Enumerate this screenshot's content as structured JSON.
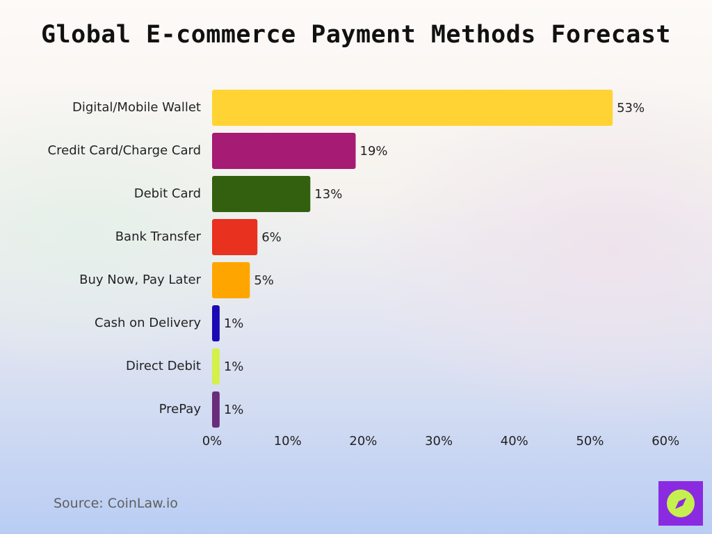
{
  "title": "Global E-commerce Payment Methods Forecast",
  "source": "Source: CoinLaw.io",
  "logo_icon": "compass-icon",
  "chart_data": {
    "type": "bar",
    "orientation": "horizontal",
    "title": "Global E-commerce Payment Methods Forecast",
    "xlabel": "",
    "ylabel": "",
    "categories": [
      "Digital/Mobile Wallet",
      "Credit Card/Charge Card",
      "Debit Card",
      "Bank Transfer",
      "Buy Now, Pay Later",
      "Cash on Delivery",
      "Direct Debit",
      "PrePay"
    ],
    "values": [
      53,
      19,
      13,
      6,
      5,
      1,
      1,
      1
    ],
    "value_labels": [
      "53%",
      "19%",
      "13%",
      "6%",
      "5%",
      "1%",
      "1%",
      "1%"
    ],
    "colors": [
      "#ffd333",
      "#a61b73",
      "#33600f",
      "#e8311f",
      "#ffa500",
      "#1a0ab3",
      "#d4f04a",
      "#6a2d7a"
    ],
    "xlim": [
      0,
      60
    ],
    "xticks": [
      0,
      10,
      20,
      30,
      40,
      50,
      60
    ],
    "xtick_labels": [
      "0%",
      "10%",
      "20%",
      "30%",
      "40%",
      "50%",
      "60%"
    ],
    "grid": false,
    "legend": "none"
  }
}
